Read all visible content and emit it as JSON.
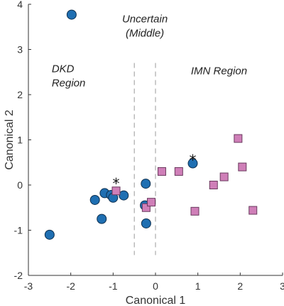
{
  "chart_data": {
    "type": "scatter",
    "xlabel": "Canonical 1",
    "ylabel": "Canonical 2",
    "xlim": [
      -3,
      3
    ],
    "ylim": [
      -2,
      4
    ],
    "xticks": [
      "-3",
      "-2",
      "-1",
      "0",
      "1",
      "2",
      "3"
    ],
    "yticks": [
      "-2",
      "-1",
      "0",
      "1",
      "2",
      "3",
      "4"
    ],
    "grid": false,
    "region_lines": [
      -0.5,
      0.0
    ],
    "annotations": [
      {
        "lines": [
          "DKD",
          "Region"
        ],
        "x": -2.45,
        "y": 2.5
      },
      {
        "lines": [
          "Uncertain",
          "(Middle)"
        ],
        "x": -0.25,
        "y": 3.6
      },
      {
        "lines": [
          "IMN Region"
        ],
        "x": 1.5,
        "y": 2.45
      }
    ],
    "star_markers": [
      {
        "x": -0.93,
        "y": 0.08
      },
      {
        "x": 0.88,
        "y": 0.6
      }
    ],
    "series": [
      {
        "marker": "circle",
        "color": "#1f6fb2",
        "points": [
          {
            "x": -1.98,
            "y": 3.77
          },
          {
            "x": -2.5,
            "y": -1.1
          },
          {
            "x": -1.43,
            "y": -0.33
          },
          {
            "x": -1.2,
            "y": -0.18
          },
          {
            "x": -1.05,
            "y": -0.22
          },
          {
            "x": -1.27,
            "y": -0.75
          },
          {
            "x": -1.0,
            "y": -0.28
          },
          {
            "x": -0.75,
            "y": -0.23
          },
          {
            "x": -0.23,
            "y": 0.03
          },
          {
            "x": -0.25,
            "y": -0.45
          },
          {
            "x": -0.22,
            "y": -0.85
          },
          {
            "x": 0.88,
            "y": 0.48
          }
        ]
      },
      {
        "marker": "square",
        "color": "#cf7fb8",
        "points": [
          {
            "x": -0.93,
            "y": -0.13
          },
          {
            "x": -0.22,
            "y": -0.5
          },
          {
            "x": -0.1,
            "y": -0.38
          },
          {
            "x": 0.15,
            "y": 0.3
          },
          {
            "x": 0.55,
            "y": 0.3
          },
          {
            "x": 0.93,
            "y": -0.58
          },
          {
            "x": 1.37,
            "y": 0.0
          },
          {
            "x": 1.62,
            "y": 0.18
          },
          {
            "x": 1.95,
            "y": 1.03
          },
          {
            "x": 2.05,
            "y": 0.4
          },
          {
            "x": 2.3,
            "y": -0.56
          }
        ]
      }
    ]
  }
}
